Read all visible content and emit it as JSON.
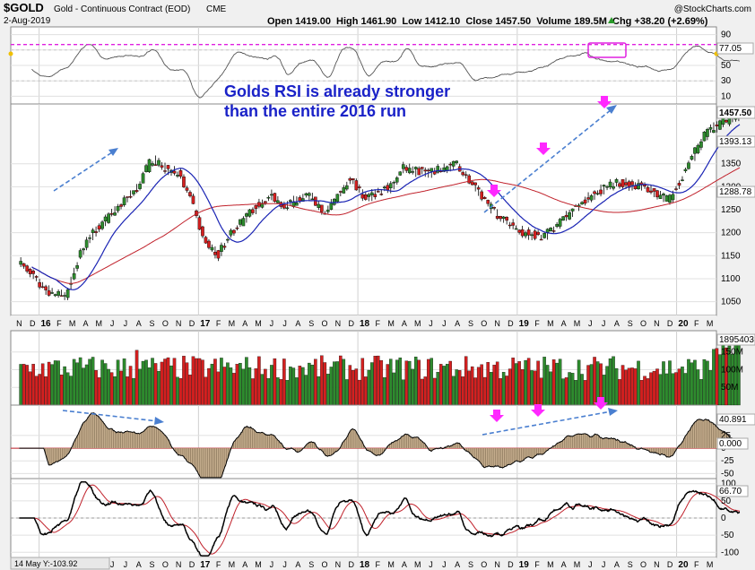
{
  "header": {
    "symbol": "$GOLD",
    "name": "Gold - Continuous Contract (EOD)",
    "exchange": "CME",
    "date": "2-Aug-2019",
    "watermark": "@StockCharts.com",
    "ohlc_text": "Open 1419.00  High 1461.90  Low 1412.10  Close 1457.50  Volume 189.5M  Chg +38.20 (+2.69%)",
    "chg_arrow_color": "#2a9a2a"
  },
  "annotation": {
    "line1": "Golds RSI is already stronger",
    "line2": "than the entire 2016 run"
  },
  "footer": {
    "status": "14 May Y:-103.92"
  },
  "colors": {
    "up": "#2e8b2e",
    "down": "#d42020",
    "ma_short": "#1a24b4",
    "ma_long": "#c0202a",
    "rsi_ref": "#e020e0",
    "trend_arrow": "#4a7fd0",
    "pink_marker": "#ff28ff",
    "hist_fill": "#c8b090"
  },
  "chart_data": {
    "type": "candlestick",
    "x_axis": {
      "months": [
        "N",
        "D",
        "16",
        "F",
        "M",
        "A",
        "M",
        "J",
        "J",
        "A",
        "S",
        "O",
        "N",
        "D",
        "17",
        "F",
        "M",
        "A",
        "M",
        "J",
        "J",
        "A",
        "S",
        "O",
        "N",
        "D",
        "18",
        "F",
        "M",
        "A",
        "M",
        "J",
        "J",
        "A",
        "S",
        "O",
        "N",
        "D",
        "19",
        "F",
        "M",
        "A",
        "M",
        "J",
        "J",
        "A",
        "S",
        "O",
        "N",
        "D",
        "20",
        "F",
        "M"
      ],
      "year_labels": [
        "16",
        "17",
        "18",
        "19",
        "20"
      ]
    },
    "rsi": {
      "ticks": [
        90,
        70,
        50,
        30,
        10
      ],
      "ylim": [
        0,
        100
      ],
      "reference_level": 77.05,
      "last_value": "77.05"
    },
    "price": {
      "ticks": [
        1350,
        1300,
        1250,
        1200,
        1150,
        1100,
        1050
      ],
      "ylim": [
        1020,
        1480
      ],
      "last_close": "1457.50",
      "ma_short_last": "1393.13",
      "ma_long_last": "1288.78",
      "pivots": [
        [
          -2,
          1140
        ],
        [
          0,
          1075
        ],
        [
          1.5,
          1060
        ],
        [
          3,
          1180
        ],
        [
          5,
          1240
        ],
        [
          7,
          1300
        ],
        [
          8,
          1360
        ],
        [
          9,
          1340
        ],
        [
          10,
          1330
        ],
        [
          11,
          1270
        ],
        [
          12,
          1180
        ],
        [
          13,
          1150
        ],
        [
          14,
          1200
        ],
        [
          16,
          1260
        ],
        [
          17,
          1280
        ],
        [
          18,
          1260
        ],
        [
          20,
          1280
        ],
        [
          21,
          1240
        ],
        [
          23,
          1320
        ],
        [
          24,
          1275
        ],
        [
          26,
          1300
        ],
        [
          27,
          1340
        ],
        [
          29,
          1330
        ],
        [
          31,
          1350
        ],
        [
          32,
          1310
        ],
        [
          34,
          1240
        ],
        [
          36,
          1200
        ],
        [
          37.5,
          1190
        ],
        [
          39,
          1230
        ],
        [
          41,
          1280
        ],
        [
          43,
          1310
        ],
        [
          45,
          1300
        ],
        [
          47,
          1270
        ],
        [
          48.5,
          1350
        ],
        [
          49.5,
          1410
        ],
        [
          51,
          1440
        ],
        [
          52.3,
          1457
        ]
      ]
    },
    "volume": {
      "ticks": [
        "150M",
        "100M",
        "50M"
      ],
      "ylim": [
        0,
        210
      ],
      "last_value": "1895403"
    },
    "momentum": {
      "ticks": [
        25,
        0,
        -25,
        -50
      ],
      "ylim": [
        -60,
        85
      ],
      "zero_label": "0.000",
      "last_value": "40.891"
    },
    "oscillator": {
      "ticks": [
        100,
        50,
        0,
        -50,
        -100
      ],
      "ylim": [
        -115,
        115
      ],
      "last_value": "66.70"
    }
  }
}
